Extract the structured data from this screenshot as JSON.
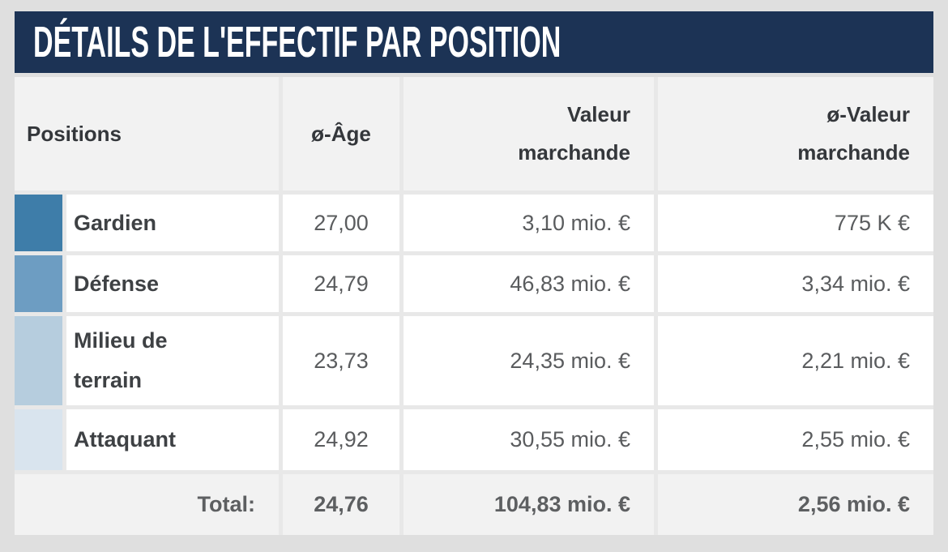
{
  "title_bar": {
    "title": "DÉTAILS DE L'EFFECTIF PAR POSITION",
    "bg_color": "#1c3355",
    "text_color": "#ffffff"
  },
  "table": {
    "header": {
      "positions": "Positions",
      "age": "ø-Âge",
      "market_value": "Valeur\nmarchande",
      "avg_market_value": "ø-Valeur\nmarchande"
    },
    "rows": [
      {
        "name": "Gardien",
        "swatch_color": "#3e7da9",
        "age": "27,00",
        "market_value": "3,10 mio. €",
        "avg_market_value": "775 K €"
      },
      {
        "name": "Défense",
        "swatch_color": "#6d9dc2",
        "age": "24,79",
        "market_value": "46,83 mio. €",
        "avg_market_value": "3,34 mio. €"
      },
      {
        "name": "Milieu de\nterrain",
        "swatch_color": "#b6cdde",
        "age": "23,73",
        "market_value": "24,35 mio. €",
        "avg_market_value": "2,21 mio. €"
      },
      {
        "name": "Attaquant",
        "swatch_color": "#d9e4ee",
        "age": "24,92",
        "market_value": "30,55 mio. €",
        "avg_market_value": "2,55 mio. €"
      }
    ],
    "total": {
      "label": "Total:",
      "age": "24,76",
      "market_value": "104,83 mio. €",
      "avg_market_value": "2,56 mio. €"
    }
  },
  "colors": {
    "page_bg": "#dfdfdf",
    "gap_bg": "#e8e8e8",
    "header_row_bg": "#f2f2f2",
    "data_row_bg": "#ffffff"
  }
}
